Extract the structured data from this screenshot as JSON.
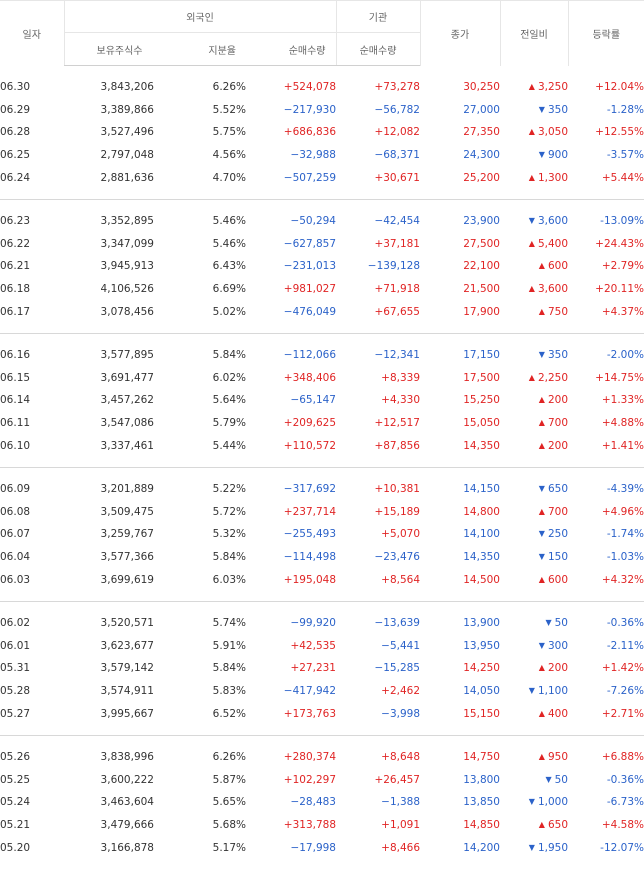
{
  "headers": {
    "date": "일자",
    "foreign": "외국인",
    "holdings": "보유주식수",
    "ratio": "지분율",
    "foreign_net": "순매수량",
    "institution": "기관",
    "institution_net": "순매수량",
    "close": "종가",
    "change": "전일비",
    "rate": "등락률"
  },
  "groups": [
    [
      {
        "date": "06.30",
        "hold": "3,843,206",
        "ratio": "6.26%",
        "fnet": "+524,078",
        "inet": "+73,278",
        "close": "30,250",
        "chg": "3,250",
        "dir": "up",
        "rate": "+12.04%"
      },
      {
        "date": "06.29",
        "hold": "3,389,866",
        "ratio": "5.52%",
        "fnet": "−217,930",
        "inet": "−56,782",
        "close": "27,000",
        "chg": "350",
        "dir": "down",
        "rate": "-1.28%"
      },
      {
        "date": "06.28",
        "hold": "3,527,496",
        "ratio": "5.75%",
        "fnet": "+686,836",
        "inet": "+12,082",
        "close": "27,350",
        "chg": "3,050",
        "dir": "up",
        "rate": "+12.55%"
      },
      {
        "date": "06.25",
        "hold": "2,797,048",
        "ratio": "4.56%",
        "fnet": "−32,988",
        "inet": "−68,371",
        "close": "24,300",
        "chg": "900",
        "dir": "down",
        "rate": "-3.57%"
      },
      {
        "date": "06.24",
        "hold": "2,881,636",
        "ratio": "4.70%",
        "fnet": "−507,259",
        "inet": "+30,671",
        "close": "25,200",
        "chg": "1,300",
        "dir": "up",
        "rate": "+5.44%"
      }
    ],
    [
      {
        "date": "06.23",
        "hold": "3,352,895",
        "ratio": "5.46%",
        "fnet": "−50,294",
        "inet": "−42,454",
        "close": "23,900",
        "chg": "3,600",
        "dir": "down",
        "rate": "-13.09%"
      },
      {
        "date": "06.22",
        "hold": "3,347,099",
        "ratio": "5.46%",
        "fnet": "−627,857",
        "inet": "+37,181",
        "close": "27,500",
        "chg": "5,400",
        "dir": "up",
        "rate": "+24.43%"
      },
      {
        "date": "06.21",
        "hold": "3,945,913",
        "ratio": "6.43%",
        "fnet": "−231,013",
        "inet": "−139,128",
        "close": "22,100",
        "chg": "600",
        "dir": "up",
        "rate": "+2.79%"
      },
      {
        "date": "06.18",
        "hold": "4,106,526",
        "ratio": "6.69%",
        "fnet": "+981,027",
        "inet": "+71,918",
        "close": "21,500",
        "chg": "3,600",
        "dir": "up",
        "rate": "+20.11%"
      },
      {
        "date": "06.17",
        "hold": "3,078,456",
        "ratio": "5.02%",
        "fnet": "−476,049",
        "inet": "+67,655",
        "close": "17,900",
        "chg": "750",
        "dir": "up",
        "rate": "+4.37%"
      }
    ],
    [
      {
        "date": "06.16",
        "hold": "3,577,895",
        "ratio": "5.84%",
        "fnet": "−112,066",
        "inet": "−12,341",
        "close": "17,150",
        "chg": "350",
        "dir": "down",
        "rate": "-2.00%"
      },
      {
        "date": "06.15",
        "hold": "3,691,477",
        "ratio": "6.02%",
        "fnet": "+348,406",
        "inet": "+8,339",
        "close": "17,500",
        "chg": "2,250",
        "dir": "up",
        "rate": "+14.75%"
      },
      {
        "date": "06.14",
        "hold": "3,457,262",
        "ratio": "5.64%",
        "fnet": "−65,147",
        "inet": "+4,330",
        "close": "15,250",
        "chg": "200",
        "dir": "up",
        "rate": "+1.33%"
      },
      {
        "date": "06.11",
        "hold": "3,547,086",
        "ratio": "5.79%",
        "fnet": "+209,625",
        "inet": "+12,517",
        "close": "15,050",
        "chg": "700",
        "dir": "up",
        "rate": "+4.88%"
      },
      {
        "date": "06.10",
        "hold": "3,337,461",
        "ratio": "5.44%",
        "fnet": "+110,572",
        "inet": "+87,856",
        "close": "14,350",
        "chg": "200",
        "dir": "up",
        "rate": "+1.41%"
      }
    ],
    [
      {
        "date": "06.09",
        "hold": "3,201,889",
        "ratio": "5.22%",
        "fnet": "−317,692",
        "inet": "+10,381",
        "close": "14,150",
        "chg": "650",
        "dir": "down",
        "rate": "-4.39%"
      },
      {
        "date": "06.08",
        "hold": "3,509,475",
        "ratio": "5.72%",
        "fnet": "+237,714",
        "inet": "+15,189",
        "close": "14,800",
        "chg": "700",
        "dir": "up",
        "rate": "+4.96%"
      },
      {
        "date": "06.07",
        "hold": "3,259,767",
        "ratio": "5.32%",
        "fnet": "−255,493",
        "inet": "+5,070",
        "close": "14,100",
        "chg": "250",
        "dir": "down",
        "rate": "-1.74%"
      },
      {
        "date": "06.04",
        "hold": "3,577,366",
        "ratio": "5.84%",
        "fnet": "−114,498",
        "inet": "−23,476",
        "close": "14,350",
        "chg": "150",
        "dir": "down",
        "rate": "-1.03%"
      },
      {
        "date": "06.03",
        "hold": "3,699,619",
        "ratio": "6.03%",
        "fnet": "+195,048",
        "inet": "+8,564",
        "close": "14,500",
        "chg": "600",
        "dir": "up",
        "rate": "+4.32%"
      }
    ],
    [
      {
        "date": "06.02",
        "hold": "3,520,571",
        "ratio": "5.74%",
        "fnet": "−99,920",
        "inet": "−13,639",
        "close": "13,900",
        "chg": "50",
        "dir": "down",
        "rate": "-0.36%"
      },
      {
        "date": "06.01",
        "hold": "3,623,677",
        "ratio": "5.91%",
        "fnet": "+42,535",
        "inet": "−5,441",
        "close": "13,950",
        "chg": "300",
        "dir": "down",
        "rate": "-2.11%"
      },
      {
        "date": "05.31",
        "hold": "3,579,142",
        "ratio": "5.84%",
        "fnet": "+27,231",
        "inet": "−15,285",
        "close": "14,250",
        "chg": "200",
        "dir": "up",
        "rate": "+1.42%"
      },
      {
        "date": "05.28",
        "hold": "3,574,911",
        "ratio": "5.83%",
        "fnet": "−417,942",
        "inet": "+2,462",
        "close": "14,050",
        "chg": "1,100",
        "dir": "down",
        "rate": "-7.26%"
      },
      {
        "date": "05.27",
        "hold": "3,995,667",
        "ratio": "6.52%",
        "fnet": "+173,763",
        "inet": "−3,998",
        "close": "15,150",
        "chg": "400",
        "dir": "up",
        "rate": "+2.71%"
      }
    ],
    [
      {
        "date": "05.26",
        "hold": "3,838,996",
        "ratio": "6.26%",
        "fnet": "+280,374",
        "inet": "+8,648",
        "close": "14,750",
        "chg": "950",
        "dir": "up",
        "rate": "+6.88%"
      },
      {
        "date": "05.25",
        "hold": "3,600,222",
        "ratio": "5.87%",
        "fnet": "+102,297",
        "inet": "+26,457",
        "close": "13,800",
        "chg": "50",
        "dir": "down",
        "rate": "-0.36%"
      },
      {
        "date": "05.24",
        "hold": "3,463,604",
        "ratio": "5.65%",
        "fnet": "−28,483",
        "inet": "−1,388",
        "close": "13,850",
        "chg": "1,000",
        "dir": "down",
        "rate": "-6.73%"
      },
      {
        "date": "05.21",
        "hold": "3,479,666",
        "ratio": "5.68%",
        "fnet": "+313,788",
        "inet": "+1,091",
        "close": "14,850",
        "chg": "650",
        "dir": "up",
        "rate": "+4.58%"
      },
      {
        "date": "05.20",
        "hold": "3,166,878",
        "ratio": "5.17%",
        "fnet": "−17,998",
        "inet": "+8,466",
        "close": "14,200",
        "chg": "1,950",
        "dir": "down",
        "rate": "-12.07%"
      }
    ]
  ],
  "icons": {
    "up": "triangle-up",
    "down": "triangle-down"
  },
  "colors": {
    "up": "#e02424",
    "down": "#2b62c9"
  }
}
